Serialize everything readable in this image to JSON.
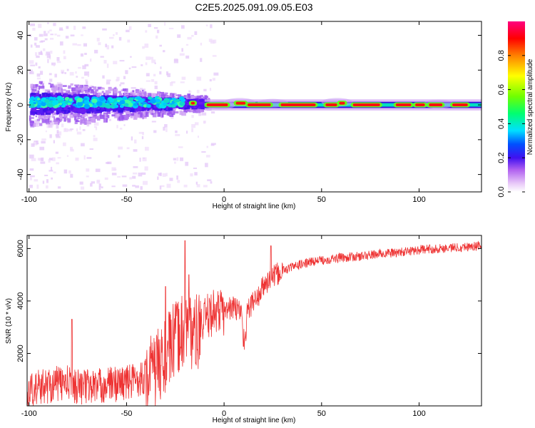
{
  "title": "C2E5.2025.091.09.05.E03",
  "chart_data": [
    {
      "type": "heatmap",
      "xlabel": "Height of straight line (km)",
      "ylabel": "Frequency (Hz)",
      "xlim": [
        -101,
        132
      ],
      "ylim": [
        -50,
        48
      ],
      "xticks": [
        -100,
        -50,
        0,
        50,
        100
      ],
      "yticks": [
        -40,
        -20,
        0,
        20,
        40
      ],
      "colorbar": {
        "label": "Normalized spectral amplitude",
        "range": [
          0,
          1
        ],
        "ticks": [
          "0.0",
          "0.2",
          "0.4",
          "0.6",
          "0.8"
        ],
        "colors": [
          "#ffffff",
          "#e8c8f8",
          "#b060f0",
          "#4010f0",
          "#0050ff",
          "#00e0ff",
          "#00ff70",
          "#70ff00",
          "#ffff00",
          "#ff8000",
          "#ff0000",
          "#ff0080"
        ]
      },
      "bright_segments": [
        {
          "x": [
            -17,
            -15
          ],
          "y": 1
        },
        {
          "x": [
            -9,
            2
          ],
          "y": 0
        },
        {
          "x": [
            6,
            11
          ],
          "y": 1
        },
        {
          "x": [
            12,
            24
          ],
          "y": 0
        },
        {
          "x": [
            29,
            47
          ],
          "y": 0
        },
        {
          "x": [
            52,
            58
          ],
          "y": 0
        },
        {
          "x": [
            59,
            62
          ],
          "y": 1
        },
        {
          "x": [
            66,
            80
          ],
          "y": 0
        },
        {
          "x": [
            88,
            96
          ],
          "y": 0
        },
        {
          "x": [
            98,
            103
          ],
          "y": 0
        },
        {
          "x": [
            105,
            112
          ],
          "y": 0
        },
        {
          "x": [
            117,
            125
          ],
          "y": 0
        }
      ]
    },
    {
      "type": "line",
      "xlabel": "Height of straight line (km)",
      "ylabel": "SNR (10 * v/v)",
      "xlim": [
        -101,
        132
      ],
      "ylim": [
        0,
        6500
      ],
      "xticks": [
        -100,
        -50,
        0,
        50,
        100
      ],
      "yticks": [
        2000,
        4000,
        6000
      ],
      "color": "#ee3333",
      "series": [
        {
          "x": [
            -101,
            -95,
            -90,
            -85,
            -80,
            -75,
            -70,
            -65,
            -60,
            -55,
            -50,
            -45,
            -40,
            -35,
            -30,
            -27,
            -24,
            -21,
            -19,
            -17,
            -15,
            -12,
            -10,
            -8,
            -5,
            -2,
            0,
            3,
            6,
            9,
            10,
            11,
            12,
            15,
            18,
            20,
            22,
            25,
            28,
            30,
            35,
            40,
            45,
            50,
            60,
            70,
            80,
            90,
            100,
            110,
            120,
            132
          ],
          "y": [
            500,
            700,
            800,
            850,
            850,
            750,
            750,
            750,
            800,
            850,
            900,
            1000,
            1150,
            1400,
            1900,
            2300,
            2600,
            2900,
            3000,
            2900,
            2700,
            2900,
            3200,
            3450,
            3600,
            3650,
            3550,
            3750,
            3700,
            3600,
            2500,
            2700,
            3600,
            4000,
            4200,
            4550,
            4700,
            4900,
            5050,
            5150,
            5300,
            5400,
            5500,
            5550,
            5650,
            5700,
            5800,
            5850,
            5950,
            6000,
            6050,
            6100
          ]
        }
      ],
      "spikes": [
        {
          "x": -78,
          "y": 3300
        },
        {
          "x": -30,
          "y": 4550
        },
        {
          "x": -20,
          "y": 6300
        },
        {
          "x": -18,
          "y": 5000
        },
        {
          "x": 24,
          "y": 6100
        }
      ]
    }
  ]
}
